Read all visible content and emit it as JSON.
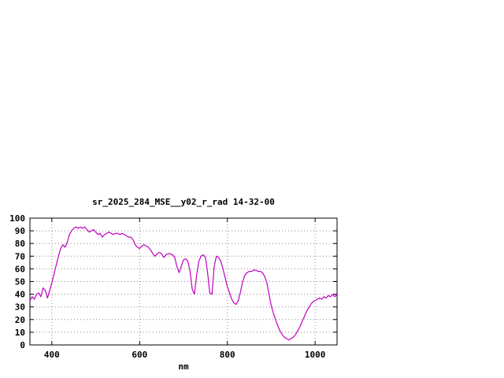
{
  "window": {
    "background": "#ffffff"
  },
  "chart_data": {
    "type": "line",
    "title": "sr_2025_284_MSE__y02_r_rad 14-32-00",
    "xlabel": "nm",
    "ylabel": "",
    "xlim": [
      350,
      1050
    ],
    "ylim": [
      0,
      100
    ],
    "xticks": [
      400,
      600,
      800,
      1000
    ],
    "yticks": [
      0,
      10,
      20,
      30,
      40,
      50,
      60,
      70,
      80,
      90,
      100
    ],
    "grid": true,
    "legend": "none",
    "line_color": "#c000c0",
    "axis_color": "#000000",
    "grid_color": "#8a8a8a",
    "series": [
      {
        "name": "spectrum",
        "x": [
          350,
          355,
          360,
          365,
          370,
          375,
          380,
          385,
          390,
          395,
          400,
          405,
          410,
          415,
          420,
          425,
          430,
          435,
          440,
          445,
          450,
          455,
          460,
          465,
          470,
          475,
          480,
          485,
          490,
          495,
          500,
          505,
          510,
          515,
          520,
          525,
          530,
          535,
          540,
          545,
          550,
          555,
          560,
          565,
          570,
          575,
          580,
          585,
          590,
          595,
          600,
          605,
          610,
          615,
          620,
          625,
          630,
          635,
          640,
          645,
          650,
          655,
          660,
          665,
          670,
          675,
          680,
          685,
          690,
          695,
          700,
          705,
          710,
          715,
          720,
          725,
          730,
          735,
          740,
          745,
          750,
          755,
          760,
          765,
          770,
          775,
          780,
          785,
          790,
          795,
          800,
          805,
          810,
          815,
          820,
          825,
          830,
          835,
          840,
          845,
          850,
          855,
          860,
          865,
          870,
          875,
          880,
          885,
          890,
          895,
          900,
          905,
          910,
          915,
          920,
          925,
          930,
          935,
          940,
          945,
          950,
          955,
          960,
          965,
          970,
          975,
          980,
          985,
          990,
          995,
          1000,
          1005,
          1010,
          1015,
          1020,
          1025,
          1030,
          1035,
          1040,
          1045,
          1050
        ],
        "y": [
          35,
          38,
          36,
          40,
          41,
          38,
          45,
          43,
          37,
          43,
          49,
          56,
          63,
          70,
          76,
          79,
          77,
          81,
          87,
          90,
          92,
          93,
          92,
          93,
          92,
          93,
          91,
          89,
          90,
          91,
          89,
          87,
          88,
          85,
          87,
          88,
          89,
          88,
          87,
          88,
          88,
          87,
          88,
          87,
          86,
          85,
          85,
          83,
          79,
          77,
          76,
          78,
          79,
          78,
          77,
          75,
          72,
          70,
          72,
          73,
          72,
          69,
          71,
          72,
          72,
          71,
          69,
          62,
          57,
          62,
          67,
          68,
          66,
          58,
          44,
          40,
          55,
          66,
          70,
          71,
          69,
          57,
          41,
          40,
          62,
          70,
          69,
          66,
          60,
          53,
          46,
          41,
          36,
          33,
          32,
          35,
          42,
          50,
          55,
          57,
          58,
          58,
          59,
          59,
          58,
          58,
          57,
          54,
          49,
          40,
          31,
          25,
          20,
          15,
          11,
          8,
          6,
          5,
          4,
          5,
          6,
          8,
          11,
          14,
          18,
          22,
          26,
          29,
          32,
          34,
          35,
          36,
          37,
          36,
          38,
          37,
          39,
          38,
          40,
          38,
          40
        ]
      }
    ]
  }
}
